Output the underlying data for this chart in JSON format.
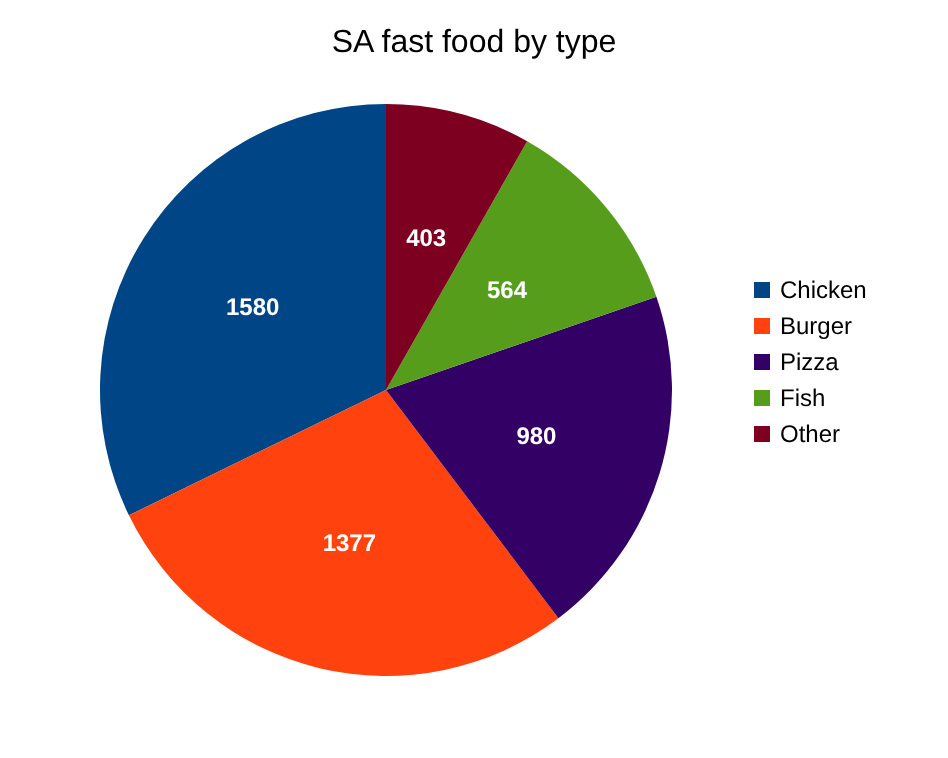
{
  "chart_data": {
    "type": "pie",
    "title": "SA fast food by type",
    "categories": [
      "Chicken",
      "Burger",
      "Pizza",
      "Fish",
      "Other"
    ],
    "values": [
      1580,
      1377,
      980,
      564,
      403
    ],
    "colors": [
      "#004586",
      "#ff420e",
      "#330066",
      "#579d1c",
      "#7e0021"
    ],
    "data_labels": true,
    "legend": "right"
  }
}
